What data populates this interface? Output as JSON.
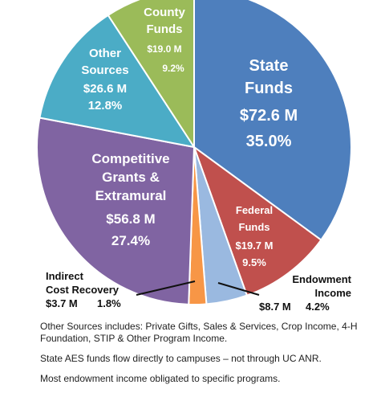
{
  "chart_data": {
    "type": "pie",
    "slices": [
      {
        "name": "State Funds",
        "label_lines": [
          "State",
          "Funds"
        ],
        "amount": "$72.6 M",
        "value": 35.0,
        "percent": "35.0%",
        "color": "#4e7fbd"
      },
      {
        "name": "Federal Funds",
        "label_lines": [
          "Federal",
          "Funds"
        ],
        "amount": "$19.7 M",
        "value": 9.5,
        "percent": "9.5%",
        "color": "#c0504d"
      },
      {
        "name": "Endowment Income",
        "label_lines": [
          "Endowment",
          "Income"
        ],
        "amount": "$8.7 M",
        "value": 4.2,
        "percent": "4.2%",
        "color": "#9ab9e0"
      },
      {
        "name": "Indirect Cost Recovery",
        "label_lines": [
          "Indirect",
          "Cost Recovery"
        ],
        "amount": "$3.7 M",
        "value": 1.8,
        "percent": "1.8%",
        "color": "#f79646"
      },
      {
        "name": "Competitive Grants & Extramural",
        "label_lines": [
          "Competitive",
          "Grants &",
          "Extramural"
        ],
        "amount": "$56.8 M",
        "value": 27.4,
        "percent": "27.4%",
        "color": "#8064a2"
      },
      {
        "name": "Other Sources",
        "label_lines": [
          "Other",
          "Sources"
        ],
        "amount": "$26.6 M",
        "value": 12.8,
        "percent": "12.8%",
        "color": "#4bacc6"
      },
      {
        "name": "County Funds",
        "label_lines": [
          "County",
          "Funds"
        ],
        "amount": "$19.0 M",
        "value": 9.2,
        "percent": "9.2%",
        "color": "#9bbb59"
      }
    ]
  },
  "notes": [
    "Other Sources includes: Private Gifts, Sales & Services, Crop Income, 4-H Foundation, STIP & Other Program Income.",
    "State AES funds flow directly  to campuses – not through UC ANR.",
    "Most endowment income obligated to specific programs."
  ]
}
